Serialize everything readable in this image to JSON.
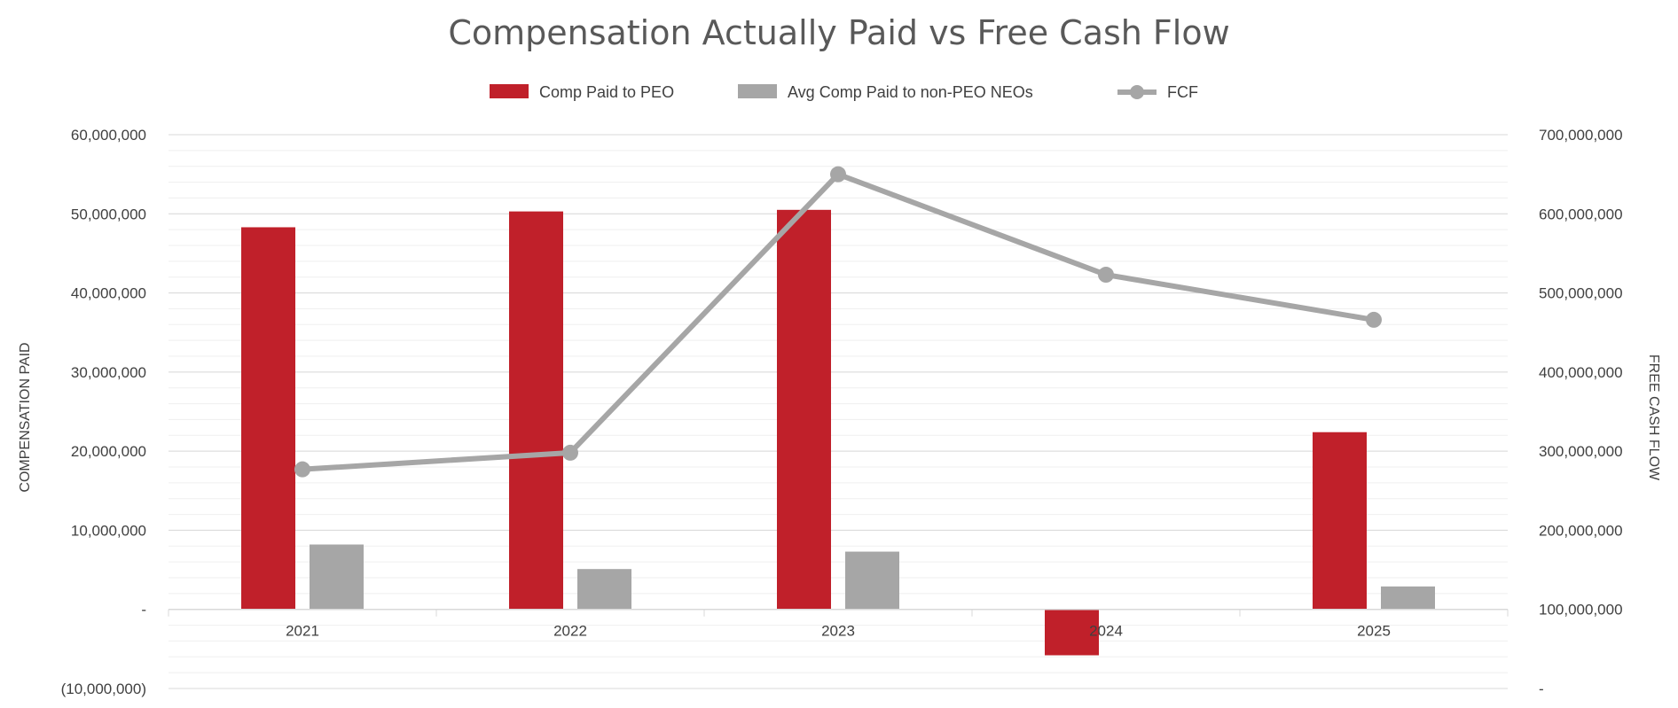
{
  "chart_data": {
    "type": "bar",
    "title": "Compensation Actually Paid vs Free Cash Flow",
    "categories": [
      "2021",
      "2022",
      "2023",
      "2024",
      "2025"
    ],
    "series": [
      {
        "name": "Comp Paid to PEO",
        "kind": "bar",
        "axis": "left",
        "color": "#C0202A",
        "values": [
          48300000,
          50300000,
          50500000,
          -5800000,
          22400000
        ]
      },
      {
        "name": "Avg Comp Paid to non-PEO NEOs",
        "kind": "bar",
        "axis": "left",
        "color": "#A6A6A6",
        "values": [
          8200000,
          5100000,
          7300000,
          0,
          2900000
        ]
      },
      {
        "name": "FCF",
        "kind": "line",
        "axis": "right",
        "color": "#A6A6A6",
        "values": [
          277000000,
          298000000,
          650000000,
          523000000,
          466000000
        ]
      }
    ],
    "left_axis": {
      "label": "COMPENSATION PAID",
      "ylim": [
        -10000000,
        60000000
      ],
      "ticks": [
        60000000,
        50000000,
        40000000,
        30000000,
        20000000,
        10000000,
        0,
        -10000000
      ],
      "tick_labels": [
        "60,000,000",
        "50,000,000",
        "40,000,000",
        "30,000,000",
        "20,000,000",
        "10,000,000",
        "-",
        "(10,000,000)"
      ]
    },
    "right_axis": {
      "label": "FREE CASH FLOW",
      "ylim": [
        0,
        700000000
      ],
      "ticks": [
        700000000,
        600000000,
        500000000,
        400000000,
        300000000,
        200000000,
        100000000,
        0
      ],
      "tick_labels": [
        "700,000,000",
        "600,000,000",
        "500,000,000",
        "400,000,000",
        "300,000,000",
        "200,000,000",
        "100,000,000",
        "-"
      ]
    },
    "legend_position": "top",
    "grid": true
  }
}
